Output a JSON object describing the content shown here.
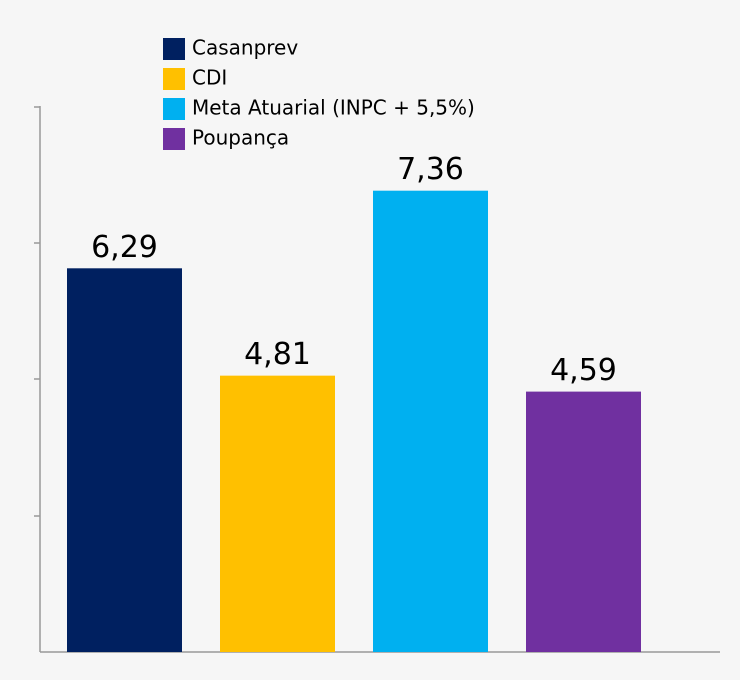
{
  "chart_data": {
    "type": "bar",
    "categories": [
      "Casanprev",
      "CDI",
      "Meta Atuarial (INPC + 5,5%)",
      "Poupança"
    ],
    "values": [
      6.29,
      4.81,
      7.36,
      4.59
    ],
    "value_labels": [
      "6,29",
      "4,81",
      "7,36",
      "4,59"
    ],
    "colors": [
      "#002060",
      "#ffc000",
      "#00b0f0",
      "#7030a0"
    ],
    "ylim": [
      1,
      8.5
    ]
  }
}
